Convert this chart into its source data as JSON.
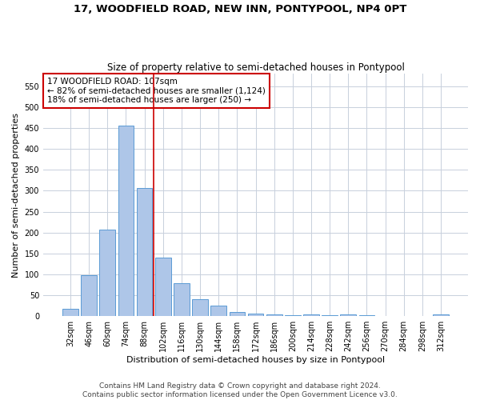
{
  "title": "17, WOODFIELD ROAD, NEW INN, PONTYPOOL, NP4 0PT",
  "subtitle": "Size of property relative to semi-detached houses in Pontypool",
  "xlabel": "Distribution of semi-detached houses by size in Pontypool",
  "ylabel": "Number of semi-detached properties",
  "categories": [
    "32sqm",
    "46sqm",
    "60sqm",
    "74sqm",
    "88sqm",
    "102sqm",
    "116sqm",
    "130sqm",
    "144sqm",
    "158sqm",
    "172sqm",
    "186sqm",
    "200sqm",
    "214sqm",
    "228sqm",
    "242sqm",
    "256sqm",
    "270sqm",
    "284sqm",
    "298sqm",
    "312sqm"
  ],
  "values": [
    17,
    98,
    207,
    456,
    306,
    141,
    79,
    40,
    25,
    10,
    6,
    5,
    3,
    5,
    3,
    4,
    3,
    1,
    0,
    0,
    4
  ],
  "bar_color": "#aec6e8",
  "bar_edge_color": "#5b9bd5",
  "vline_x": 4.5,
  "vline_color": "#cc0000",
  "annotation_text": "17 WOODFIELD ROAD: 107sqm\n← 82% of semi-detached houses are smaller (1,124)\n18% of semi-detached houses are larger (250) →",
  "annotation_box_color": "#ffffff",
  "annotation_box_edge_color": "#cc0000",
  "ylim": [
    0,
    580
  ],
  "yticks": [
    0,
    50,
    100,
    150,
    200,
    250,
    300,
    350,
    400,
    450,
    500,
    550
  ],
  "footer_line1": "Contains HM Land Registry data © Crown copyright and database right 2024.",
  "footer_line2": "Contains public sector information licensed under the Open Government Licence v3.0.",
  "background_color": "#ffffff",
  "grid_color": "#c8d0dc",
  "title_fontsize": 9.5,
  "subtitle_fontsize": 8.5,
  "label_fontsize": 8,
  "tick_fontsize": 7,
  "annotation_fontsize": 7.5,
  "footer_fontsize": 6.5
}
